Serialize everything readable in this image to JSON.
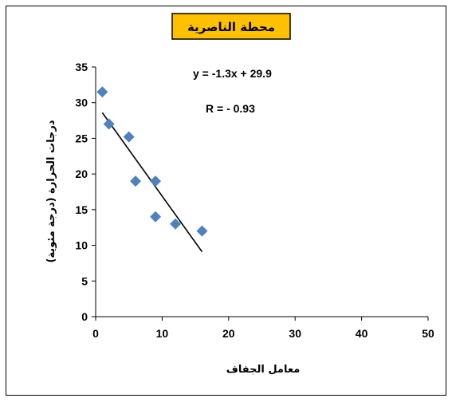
{
  "chart_data": {
    "type": "scatter",
    "title": "محطة الناصرية",
    "title_bg_color": "#ffc000",
    "xlabel": "معامل الجفاف",
    "ylabel": "درجات الحرارة (درجة مئوية)",
    "xlim": [
      0,
      50
    ],
    "ylim": [
      0,
      35
    ],
    "x_ticks": [
      "0",
      "10",
      "20",
      "30",
      "40",
      "50"
    ],
    "y_ticks": [
      "0",
      "5",
      "10",
      "15",
      "20",
      "25",
      "30",
      "35"
    ],
    "grid": false,
    "legend": "none",
    "marker_color": "#4f81bd",
    "trendline_color": "#000000",
    "series": [
      {
        "points": [
          {
            "x": 1,
            "y": 31.5
          },
          {
            "x": 2,
            "y": 27
          },
          {
            "x": 5,
            "y": 25.2
          },
          {
            "x": 6,
            "y": 19
          },
          {
            "x": 9,
            "y": 19
          },
          {
            "x": 9,
            "y": 14
          },
          {
            "x": 12,
            "y": 13
          },
          {
            "x": 16,
            "y": 12
          }
        ]
      }
    ],
    "trendline": {
      "slope": -1.3,
      "intercept": 29.9,
      "x_start": 1,
      "x_end": 16
    },
    "annotations": {
      "equation": "y = -1.3x + 29.9",
      "r_value": "R = - 0.93"
    }
  }
}
